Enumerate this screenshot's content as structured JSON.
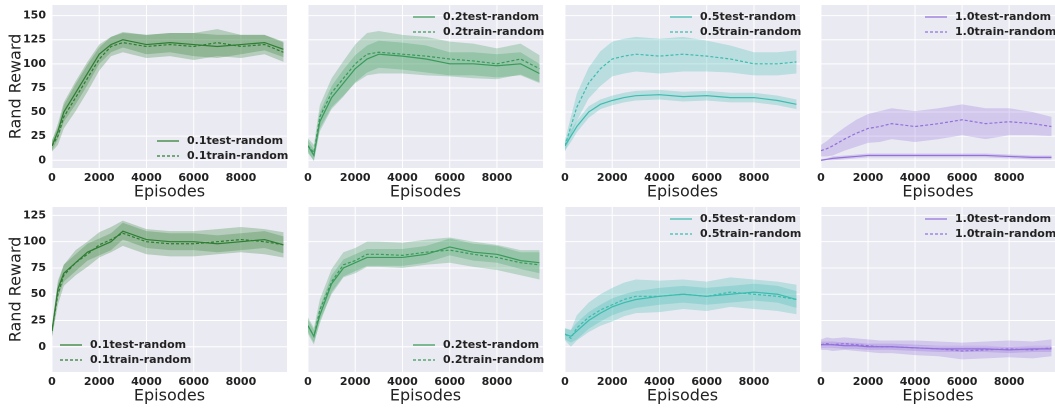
{
  "chart_data": [
    {
      "type": "line",
      "ylabel": "Rand Reward",
      "xlabel": "Episodes",
      "legend": "lower right",
      "grid": true,
      "xlim": [
        0,
        9950
      ],
      "xticks": [
        0,
        2000,
        4000,
        6000,
        8000
      ],
      "ylim": [
        -8,
        161
      ],
      "yticks": [
        0,
        25,
        50,
        75,
        100,
        125,
        150
      ],
      "x": [
        0,
        250,
        500,
        1000,
        1500,
        2000,
        2500,
        3000,
        4000,
        5000,
        6000,
        7000,
        8000,
        9000,
        9800
      ],
      "series": [
        {
          "name": "0.1test-random",
          "color": "#2e7d32",
          "style": "solid",
          "values": [
            15,
            30,
            50,
            70,
            90,
            110,
            120,
            125,
            120,
            122,
            120,
            118,
            120,
            122,
            115
          ],
          "error": [
            5,
            8,
            10,
            12,
            12,
            10,
            8,
            8,
            10,
            10,
            12,
            12,
            10,
            8,
            8
          ]
        },
        {
          "name": "0.1train-random",
          "color": "#2e7d32",
          "style": "dashed",
          "values": [
            15,
            25,
            45,
            65,
            85,
            105,
            118,
            122,
            118,
            120,
            118,
            122,
            118,
            120,
            112
          ],
          "error": [
            6,
            9,
            12,
            14,
            14,
            12,
            10,
            10,
            12,
            12,
            14,
            14,
            12,
            10,
            10
          ]
        }
      ]
    },
    {
      "type": "line",
      "xlabel": "Episodes",
      "legend": "upper right",
      "grid": true,
      "xlim": [
        0,
        9950
      ],
      "xticks": [
        0,
        2000,
        4000,
        6000,
        8000
      ],
      "ylim": [
        -8,
        161
      ],
      "x": [
        0,
        250,
        500,
        1000,
        1500,
        2000,
        2500,
        3000,
        4000,
        5000,
        6000,
        7000,
        8000,
        9000,
        9800
      ],
      "series": [
        {
          "name": "0.2test-random",
          "color": "#3a9a5a",
          "style": "solid",
          "values": [
            15,
            5,
            40,
            65,
            80,
            95,
            105,
            110,
            108,
            105,
            100,
            100,
            98,
            100,
            90
          ],
          "error": [
            6,
            6,
            10,
            12,
            14,
            14,
            14,
            14,
            14,
            14,
            12,
            12,
            12,
            12,
            10
          ]
        },
        {
          "name": "0.2train-random",
          "color": "#3a9a5a",
          "style": "dashed",
          "values": [
            15,
            8,
            45,
            70,
            85,
            100,
            110,
            112,
            110,
            108,
            105,
            103,
            100,
            105,
            95
          ],
          "error": [
            8,
            8,
            12,
            15,
            18,
            20,
            22,
            22,
            20,
            20,
            18,
            18,
            16,
            16,
            14
          ]
        }
      ]
    },
    {
      "type": "line",
      "xlabel": "Episodes",
      "legend": "upper right",
      "grid": true,
      "xlim": [
        0,
        9950
      ],
      "xticks": [
        0,
        2000,
        4000,
        6000,
        8000
      ],
      "ylim": [
        -8,
        161
      ],
      "x": [
        0,
        250,
        500,
        1000,
        1500,
        2000,
        2500,
        3000,
        4000,
        5000,
        6000,
        7000,
        8000,
        9000,
        9800
      ],
      "series": [
        {
          "name": "0.5test-random",
          "color": "#3dbcb0",
          "style": "solid",
          "values": [
            15,
            25,
            35,
            50,
            58,
            62,
            65,
            67,
            68,
            66,
            67,
            65,
            65,
            62,
            58
          ],
          "error": [
            5,
            6,
            6,
            6,
            5,
            5,
            5,
            5,
            5,
            5,
            5,
            5,
            5,
            5,
            5
          ]
        },
        {
          "name": "0.5train-random",
          "color": "#3dbcb0",
          "style": "dashed",
          "values": [
            15,
            35,
            55,
            80,
            95,
            105,
            108,
            110,
            108,
            110,
            108,
            105,
            100,
            100,
            102
          ],
          "error": [
            6,
            10,
            14,
            16,
            18,
            18,
            18,
            18,
            18,
            18,
            16,
            14,
            12,
            12,
            12
          ]
        }
      ]
    },
    {
      "type": "line",
      "xlabel": "Episodes",
      "legend": "upper right",
      "grid": true,
      "xlim": [
        0,
        9950
      ],
      "xticks": [
        0,
        2000,
        4000,
        6000,
        8000
      ],
      "ylim": [
        -8,
        161
      ],
      "x": [
        0,
        250,
        500,
        1000,
        1500,
        2000,
        2500,
        3000,
        4000,
        5000,
        6000,
        7000,
        8000,
        9000,
        9800
      ],
      "series": [
        {
          "name": "1.0test-random",
          "color": "#9370db",
          "style": "solid",
          "values": [
            0,
            1,
            2,
            3,
            4,
            5,
            5,
            5,
            5,
            5,
            5,
            5,
            4,
            3,
            3
          ],
          "error": [
            1,
            1,
            2,
            2,
            2,
            2,
            2,
            2,
            2,
            2,
            2,
            2,
            2,
            2,
            2
          ]
        },
        {
          "name": "1.0train-random",
          "color": "#9370db",
          "style": "dashed",
          "values": [
            10,
            12,
            15,
            22,
            28,
            33,
            35,
            38,
            35,
            38,
            42,
            38,
            40,
            38,
            35
          ],
          "error": [
            6,
            8,
            10,
            12,
            14,
            15,
            16,
            16,
            16,
            16,
            16,
            16,
            14,
            12,
            10
          ]
        }
      ]
    },
    {
      "type": "line",
      "ylabel": "Rand Reward",
      "xlabel": "Episodes",
      "legend": "lower left",
      "grid": true,
      "xlim": [
        0,
        9950
      ],
      "xticks": [
        0,
        2000,
        4000,
        6000,
        8000
      ],
      "ylim": [
        -24,
        133
      ],
      "yticks": [
        0,
        25,
        50,
        75,
        100,
        125
      ],
      "x": [
        0,
        250,
        500,
        1000,
        1500,
        2000,
        2500,
        3000,
        4000,
        5000,
        6000,
        7000,
        8000,
        9000,
        9800
      ],
      "series": [
        {
          "name": "0.1test-random",
          "color": "#2e7d32",
          "style": "solid",
          "values": [
            15,
            55,
            70,
            80,
            90,
            95,
            100,
            110,
            102,
            100,
            100,
            98,
            100,
            102,
            97
          ],
          "error": [
            5,
            8,
            8,
            8,
            8,
            8,
            8,
            8,
            8,
            8,
            8,
            8,
            8,
            8,
            8
          ]
        },
        {
          "name": "0.1train-random",
          "color": "#2e7d32",
          "style": "dashed",
          "values": [
            15,
            50,
            68,
            80,
            88,
            97,
            102,
            108,
            100,
            98,
            98,
            100,
            102,
            100,
            97
          ],
          "error": [
            6,
            10,
            10,
            12,
            12,
            12,
            12,
            12,
            12,
            12,
            12,
            12,
            12,
            12,
            12
          ]
        }
      ]
    },
    {
      "type": "line",
      "xlabel": "Episodes",
      "legend": "lower right",
      "grid": true,
      "xlim": [
        0,
        9950
      ],
      "xticks": [
        0,
        2000,
        4000,
        6000,
        8000
      ],
      "ylim": [
        -24,
        133
      ],
      "x": [
        0,
        250,
        500,
        1000,
        1500,
        2000,
        2500,
        3000,
        4000,
        5000,
        6000,
        7000,
        8000,
        9000,
        9800
      ],
      "series": [
        {
          "name": "0.2test-random",
          "color": "#3a9a5a",
          "style": "solid",
          "values": [
            20,
            10,
            30,
            60,
            75,
            80,
            85,
            85,
            85,
            88,
            95,
            90,
            88,
            82,
            80
          ],
          "error": [
            6,
            6,
            8,
            8,
            8,
            8,
            8,
            8,
            8,
            8,
            8,
            8,
            8,
            8,
            10
          ]
        },
        {
          "name": "0.2train-random",
          "color": "#3a9a5a",
          "style": "dashed",
          "values": [
            20,
            10,
            35,
            62,
            78,
            82,
            88,
            88,
            87,
            90,
            92,
            88,
            85,
            80,
            78
          ],
          "error": [
            8,
            8,
            10,
            12,
            12,
            12,
            12,
            12,
            12,
            12,
            12,
            12,
            12,
            12,
            14
          ]
        }
      ]
    },
    {
      "type": "line",
      "xlabel": "Episodes",
      "legend": "upper right",
      "grid": true,
      "xlim": [
        0,
        9950
      ],
      "xticks": [
        0,
        2000,
        4000,
        6000,
        8000
      ],
      "ylim": [
        -24,
        133
      ],
      "x": [
        0,
        250,
        500,
        1000,
        1500,
        2000,
        2500,
        3000,
        4000,
        5000,
        6000,
        7000,
        8000,
        9000,
        9800
      ],
      "series": [
        {
          "name": "0.5test-random",
          "color": "#3dbcb0",
          "style": "solid",
          "values": [
            12,
            10,
            15,
            25,
            32,
            38,
            42,
            45,
            48,
            50,
            48,
            50,
            52,
            50,
            45
          ],
          "error": [
            5,
            6,
            8,
            8,
            8,
            8,
            8,
            8,
            8,
            8,
            8,
            8,
            8,
            8,
            8
          ]
        },
        {
          "name": "0.5train-random",
          "color": "#3dbcb0",
          "style": "dashed",
          "values": [
            12,
            8,
            18,
            28,
            35,
            40,
            45,
            48,
            48,
            50,
            48,
            52,
            50,
            48,
            45
          ],
          "error": [
            6,
            8,
            12,
            14,
            15,
            16,
            16,
            16,
            15,
            14,
            14,
            14,
            14,
            14,
            14
          ]
        }
      ]
    },
    {
      "type": "line",
      "xlabel": "Episodes",
      "legend": "upper right",
      "grid": true,
      "xlim": [
        0,
        9950
      ],
      "xticks": [
        0,
        2000,
        4000,
        6000,
        8000
      ],
      "ylim": [
        -24,
        133
      ],
      "x": [
        0,
        250,
        500,
        1000,
        1500,
        2000,
        2500,
        3000,
        4000,
        5000,
        6000,
        7000,
        8000,
        9000,
        9800
      ],
      "series": [
        {
          "name": "1.0test-random",
          "color": "#9370db",
          "style": "solid",
          "values": [
            2,
            2,
            2,
            1,
            1,
            0,
            0,
            0,
            -1,
            -2,
            -2,
            -2,
            -3,
            -2,
            -2
          ],
          "error": [
            3,
            3,
            3,
            3,
            3,
            3,
            3,
            3,
            3,
            3,
            3,
            3,
            3,
            3,
            3
          ]
        },
        {
          "name": "1.0train-random",
          "color": "#9370db",
          "style": "dashed",
          "values": [
            2,
            3,
            2,
            3,
            2,
            1,
            0,
            0,
            -1,
            -2,
            -4,
            -3,
            -2,
            -3,
            -1
          ],
          "error": [
            5,
            6,
            6,
            6,
            6,
            6,
            6,
            6,
            7,
            7,
            8,
            8,
            8,
            8,
            8
          ]
        }
      ]
    }
  ]
}
